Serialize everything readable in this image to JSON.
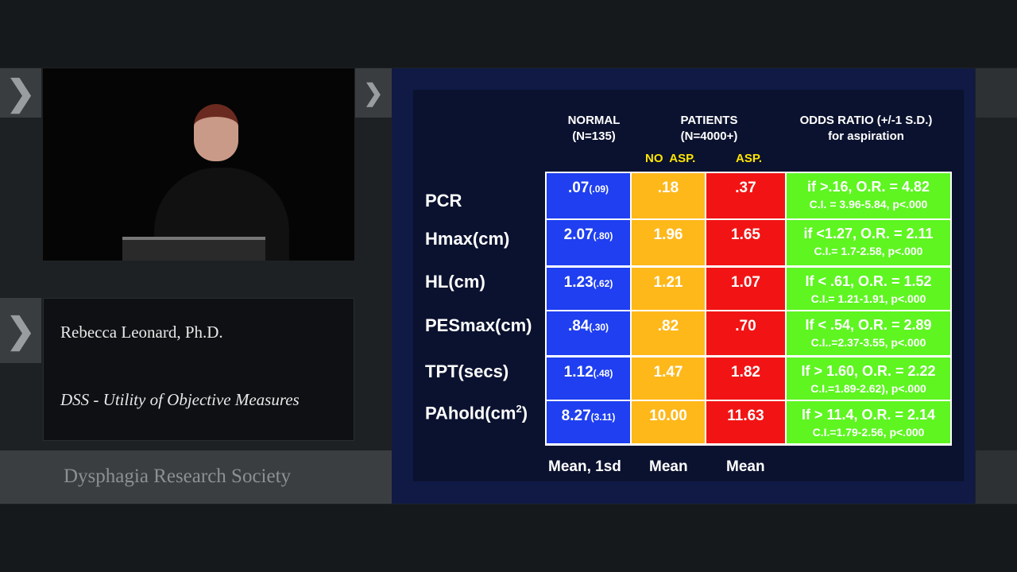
{
  "speaker": {
    "name": "Rebecca Leonard, Ph.D.",
    "talk_title": "DSS - Utility of Objective Measures"
  },
  "organization": "Dysphagia Research Society",
  "slide": {
    "headers": {
      "normal": "NORMAL",
      "normal_n": "(N=135)",
      "patients": "PATIENTS",
      "patients_n": "(N=4000+)",
      "odds": "ODDS RATIO (+/-1 S.D.)",
      "odds_sub": "for aspiration",
      "no_asp": "NO  ASP.",
      "asp": "ASP."
    },
    "rows": [
      {
        "label": "PCR",
        "sup": "",
        "normal": ".07",
        "sd": "(.09)",
        "no_asp": ".18",
        "asp": ".37",
        "or": "if >.16, O.R. = 4.82",
        "ci": "C.I. = 3.96-5.84,  p<.000"
      },
      {
        "label": "Hmax(cm)",
        "sup": "",
        "normal": "2.07",
        "sd": "(.80)",
        "no_asp": "1.96",
        "asp": "1.65",
        "or": "if <1.27, O.R. = 2.11",
        "ci": "C.I.= 1.7-2.58,  p<.000"
      },
      {
        "label": "HL(cm)",
        "sup": "",
        "normal": "1.23",
        "sd": "(.62)",
        "no_asp": "1.21",
        "asp": "1.07",
        "or": "If < .61, O.R. = 1.52",
        "ci": "C.I.= 1.21-1.91,  p<.000"
      },
      {
        "label": "PESmax(cm)",
        "sup": "",
        "normal": ".84",
        "sd": "(.30)",
        "no_asp": ".82",
        "asp": ".70",
        "or": "If < .54, O.R. = 2.89",
        "ci": "C.I..=2.37-3.55, p<.000"
      },
      {
        "label": "TPT(secs)",
        "sup": "",
        "normal": "1.12",
        "sd": "(.48)",
        "no_asp": "1.47",
        "asp": "1.82",
        "or": "If > 1.60, O.R. = 2.22",
        "ci": "C.I.=1.89-2.62), p<.000"
      },
      {
        "label": "PAhold(cm",
        "sup": "2",
        "normal": "8.27",
        "sd": "(3.11)",
        "no_asp": "10.00",
        "asp": "11.63",
        "or": "If > 11.4, O.R. = 2.14",
        "ci": "C.I.=1.79-2.56, p<.000"
      }
    ],
    "footer": {
      "normal": "Mean, 1sd",
      "no_asp": "Mean",
      "asp": "Mean"
    },
    "colors": {
      "normal": "#1f3ff0",
      "no_asp": "#ffb81a",
      "asp": "#f21414",
      "odds": "#5ef521"
    }
  }
}
